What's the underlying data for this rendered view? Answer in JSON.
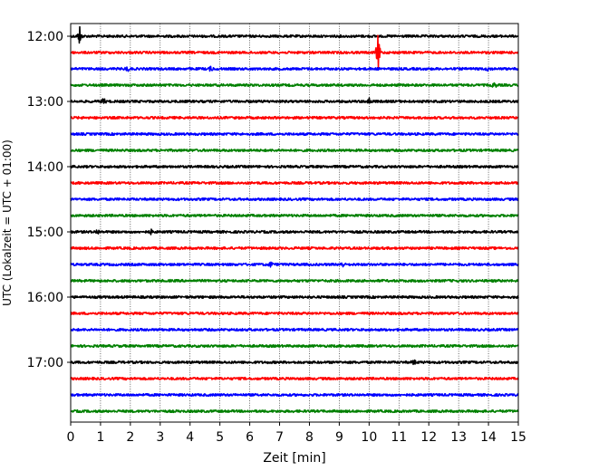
{
  "chart_data": {
    "type": "line",
    "title": "",
    "xlabel": "Zeit  [min]",
    "ylabel": "UTC (Lokalzeit = UTC + 01:00)",
    "xlim": [
      0,
      15
    ],
    "x_ticks": [
      0,
      1,
      2,
      3,
      4,
      5,
      6,
      7,
      8,
      9,
      10,
      11,
      12,
      13,
      14,
      15
    ],
    "x_tick_labels": [
      "0",
      "1",
      "2",
      "3",
      "4",
      "5",
      "6",
      "7",
      "8",
      "9",
      "10",
      "11",
      "12",
      "13",
      "14",
      "15"
    ],
    "y_tick_labels": [
      "12:00",
      "13:00",
      "14:00",
      "15:00",
      "16:00",
      "17:00"
    ],
    "grid": "vertical dotted",
    "trace_interval_min": 15,
    "trace_count": 24,
    "trace_starts": [
      "12:00",
      "12:15",
      "12:30",
      "12:45",
      "13:00",
      "13:15",
      "13:30",
      "13:45",
      "14:00",
      "14:15",
      "14:30",
      "14:45",
      "15:00",
      "15:15",
      "15:30",
      "15:45",
      "16:00",
      "16:15",
      "16:30",
      "16:45",
      "17:00",
      "17:15",
      "17:30",
      "17:45"
    ],
    "color_cycle": [
      "#000000",
      "#ff0000",
      "#0000ff",
      "#008000"
    ],
    "events": [
      {
        "trace": 0,
        "minute": 0.3,
        "amplitude": 1.0
      },
      {
        "trace": 1,
        "minute": 10.3,
        "amplitude": 2.0
      },
      {
        "trace": 2,
        "minute": 1.9,
        "amplitude": 0.3
      },
      {
        "trace": 2,
        "minute": 4.7,
        "amplitude": 0.3
      },
      {
        "trace": 2,
        "minute": 14.0,
        "amplitude": 0.3
      },
      {
        "trace": 3,
        "minute": 14.2,
        "amplitude": 0.35
      },
      {
        "trace": 4,
        "minute": 1.1,
        "amplitude": 0.4
      },
      {
        "trace": 4,
        "minute": 10.0,
        "amplitude": 0.5
      },
      {
        "trace": 12,
        "minute": 0.9,
        "amplitude": 0.3
      },
      {
        "trace": 12,
        "minute": 2.7,
        "amplitude": 0.3
      },
      {
        "trace": 14,
        "minute": 6.7,
        "amplitude": 0.35
      },
      {
        "trace": 14,
        "minute": 9.1,
        "amplitude": 0.35
      },
      {
        "trace": 20,
        "minute": 11.5,
        "amplitude": 0.3
      }
    ]
  }
}
